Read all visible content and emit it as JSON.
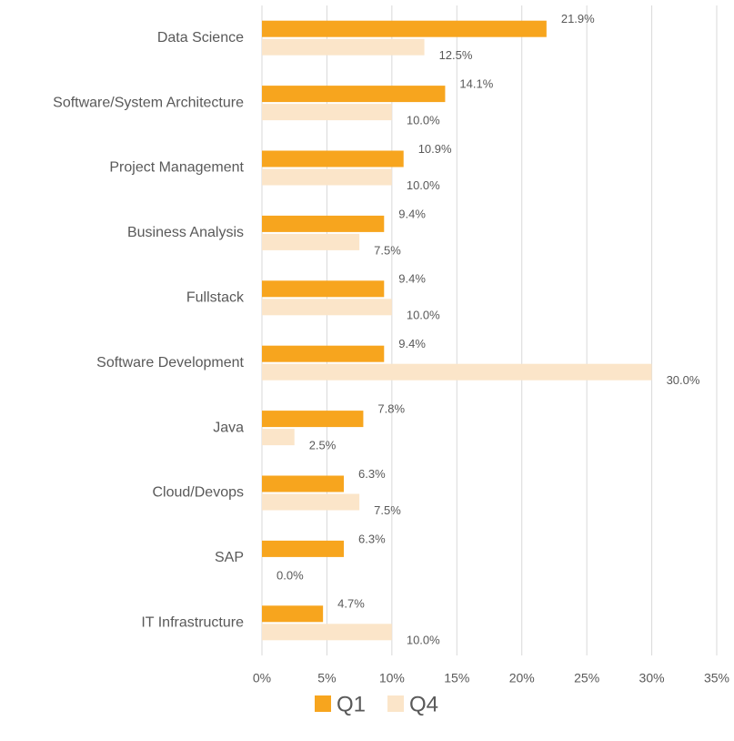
{
  "chart_data": {
    "type": "hbar",
    "categories": [
      "Data Science",
      "Software/System Architecture",
      "Project Management",
      "Business Analysis",
      "Fullstack",
      "Software Development",
      "Java",
      "Cloud/Devops",
      "SAP",
      "IT Infrastructure"
    ],
    "series": [
      {
        "name": "Q1",
        "color": "#f7a51e",
        "values": [
          21.9,
          14.1,
          10.9,
          9.4,
          9.4,
          9.4,
          7.8,
          6.3,
          6.3,
          4.7
        ],
        "value_labels": [
          "21.9%",
          "14.1%",
          "10.9%",
          "9.4%",
          "9.4%",
          "9.4%",
          "7.8%",
          "6.3%",
          "6.3%",
          "4.7%"
        ]
      },
      {
        "name": "Q4",
        "color": "#fbe5c9",
        "values": [
          12.5,
          10.0,
          10.0,
          7.5,
          10.0,
          30.0,
          2.5,
          7.5,
          0.0,
          10.0
        ],
        "value_labels": [
          "12.5%",
          "10.0%",
          "10.0%",
          "7.5%",
          "10.0%",
          "30.0%",
          "2.5%",
          "7.5%",
          "0.0%",
          "10.0%"
        ]
      }
    ],
    "xlim": [
      0,
      35
    ],
    "xticks": [
      {
        "value": 0,
        "label": "0%"
      },
      {
        "value": 5,
        "label": "5%"
      },
      {
        "value": 10,
        "label": "10%"
      },
      {
        "value": 15,
        "label": "15%"
      },
      {
        "value": 20,
        "label": "20%"
      },
      {
        "value": 25,
        "label": "25%"
      },
      {
        "value": 30,
        "label": "30%"
      },
      {
        "value": 35,
        "label": "35%"
      }
    ],
    "grid": true,
    "legend": "bottom"
  }
}
